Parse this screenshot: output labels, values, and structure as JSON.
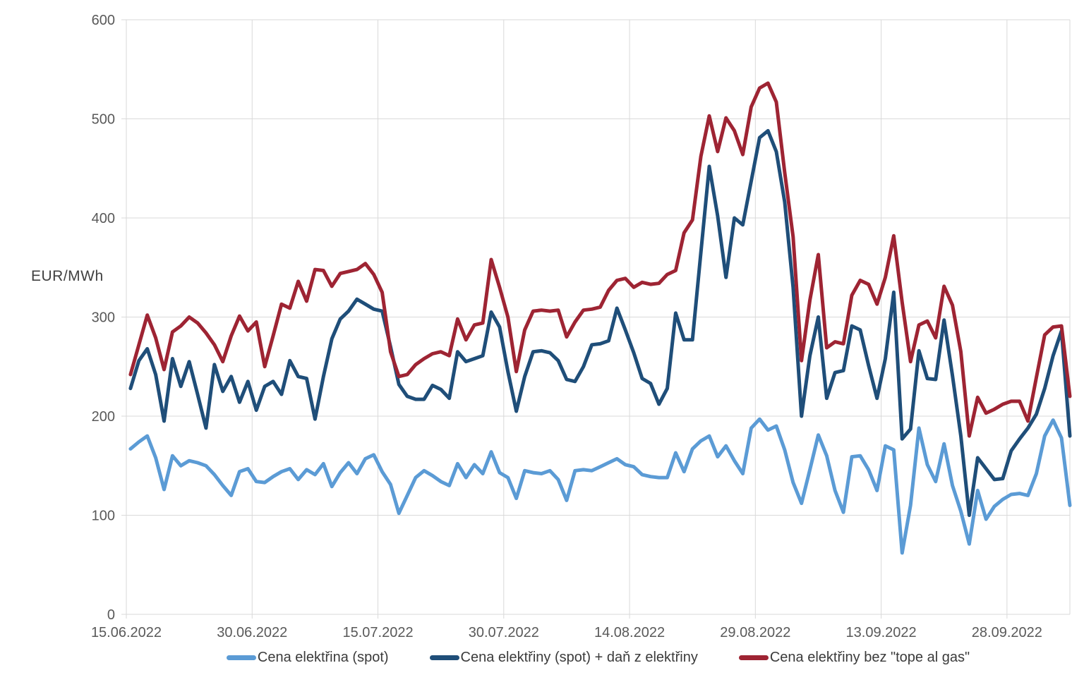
{
  "chart_data": {
    "type": "line",
    "title": "",
    "y_axis": {
      "label": "EUR/MWh",
      "min": 0,
      "max": 600,
      "tick_step": 100,
      "ticks": [
        0,
        100,
        200,
        300,
        400,
        500,
        600
      ]
    },
    "x_axis": {
      "start_date": "15.06.2022",
      "end_date": "05.10.2022",
      "tick_interval_days": 15,
      "tick_labels": [
        "15.06.2022",
        "30.06.2022",
        "15.07.2022",
        "30.07.2022",
        "14.08.2022",
        "29.08.2022",
        "13.09.2022",
        "28.09.2022"
      ]
    },
    "grid": true,
    "legend_position": "bottom",
    "colors": {
      "grid": "#D9D9D9",
      "axis_text": "#595959",
      "plot_background": "#FFFFFF"
    },
    "series": [
      {
        "name": "Cena elektřina (spot)",
        "color": "#5B9BD5",
        "values": [
          167,
          174,
          180,
          158,
          126,
          160,
          150,
          155,
          153,
          150,
          141,
          130,
          120,
          144,
          147,
          134,
          133,
          139,
          144,
          147,
          136,
          146,
          141,
          152,
          129,
          143,
          153,
          142,
          157,
          161,
          144,
          131,
          102,
          120,
          138,
          145,
          140,
          134,
          130,
          152,
          138,
          151,
          142,
          164,
          143,
          138,
          117,
          145,
          143,
          142,
          145,
          136,
          115,
          145,
          146,
          145,
          149,
          153,
          157,
          151,
          149,
          141,
          139,
          138,
          138,
          163,
          144,
          167,
          175,
          180,
          159,
          170,
          155,
          142,
          188,
          197,
          186,
          190,
          166,
          133,
          112,
          146,
          181,
          160,
          125,
          103,
          159,
          160,
          146,
          125,
          170,
          166,
          62,
          110,
          188,
          151,
          134,
          172,
          130,
          104,
          71,
          125,
          96,
          109,
          116,
          121,
          122,
          120,
          142,
          180,
          196,
          178,
          110
        ]
      },
      {
        "name": "Cena elektřiny (spot) + daň z elektřiny",
        "color": "#1F4E79",
        "values": [
          228,
          256,
          268,
          242,
          195,
          258,
          230,
          255,
          222,
          188,
          252,
          225,
          240,
          214,
          235,
          206,
          230,
          235,
          222,
          256,
          240,
          238,
          197,
          240,
          278,
          298,
          306,
          318,
          313,
          308,
          306,
          270,
          232,
          220,
          217,
          217,
          231,
          227,
          218,
          265,
          255,
          258,
          261,
          305,
          290,
          245,
          205,
          240,
          265,
          266,
          264,
          256,
          237,
          235,
          250,
          272,
          273,
          276,
          309,
          287,
          264,
          238,
          233,
          212,
          228,
          304,
          277,
          277,
          365,
          452,
          402,
          340,
          400,
          393,
          437,
          481,
          488,
          467,
          416,
          330,
          200,
          261,
          300,
          218,
          244,
          246,
          291,
          287,
          251,
          218,
          258,
          325,
          177,
          187,
          266,
          238,
          237,
          297,
          241,
          180,
          100,
          158,
          147,
          136,
          137,
          165,
          177,
          188,
          202,
          228,
          261,
          286,
          180
        ]
      },
      {
        "name": "Cena elektřiny bez \"tope al gas\"",
        "color": "#9E2433",
        "values": [
          242,
          272,
          302,
          279,
          247,
          285,
          291,
          300,
          294,
          284,
          272,
          255,
          281,
          301,
          286,
          295,
          250,
          281,
          313,
          309,
          336,
          316,
          348,
          347,
          331,
          344,
          346,
          348,
          354,
          343,
          325,
          265,
          240,
          242,
          252,
          258,
          263,
          265,
          261,
          298,
          277,
          292,
          294,
          358,
          330,
          300,
          245,
          287,
          306,
          307,
          306,
          307,
          280,
          295,
          307,
          308,
          310,
          327,
          337,
          339,
          330,
          335,
          333,
          334,
          343,
          347,
          385,
          398,
          462,
          503,
          467,
          501,
          488,
          464,
          512,
          531,
          536,
          517,
          446,
          381,
          256,
          317,
          363,
          269,
          275,
          273,
          322,
          337,
          333,
          313,
          340,
          382,
          315,
          255,
          292,
          296,
          279,
          331,
          312,
          265,
          180,
          219,
          203,
          207,
          212,
          215,
          215,
          195,
          239,
          282,
          290,
          291,
          220
        ]
      }
    ]
  }
}
